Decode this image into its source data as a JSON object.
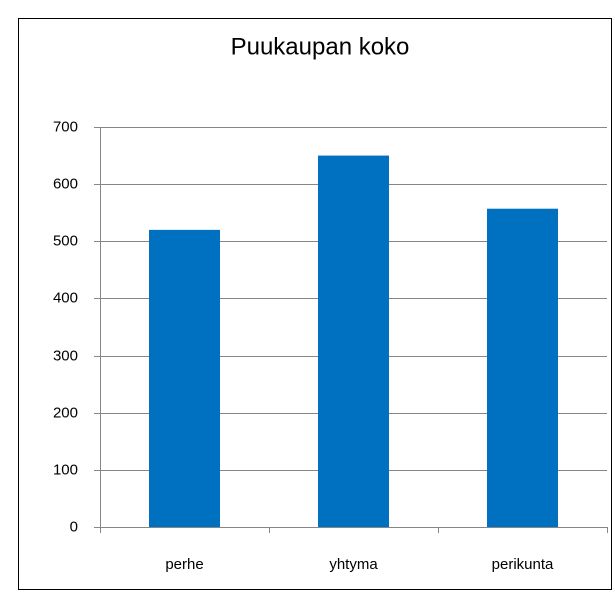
{
  "chart_data": {
    "type": "bar",
    "title": "Puukaupan koko",
    "categories": [
      "perhe",
      "yhtyma",
      "perikunta"
    ],
    "values": [
      520,
      650,
      557
    ],
    "color": "#0070c0",
    "ylim": [
      0,
      700
    ],
    "yticks": [
      0,
      100,
      200,
      300,
      400,
      500,
      600,
      700
    ],
    "grid": true
  }
}
